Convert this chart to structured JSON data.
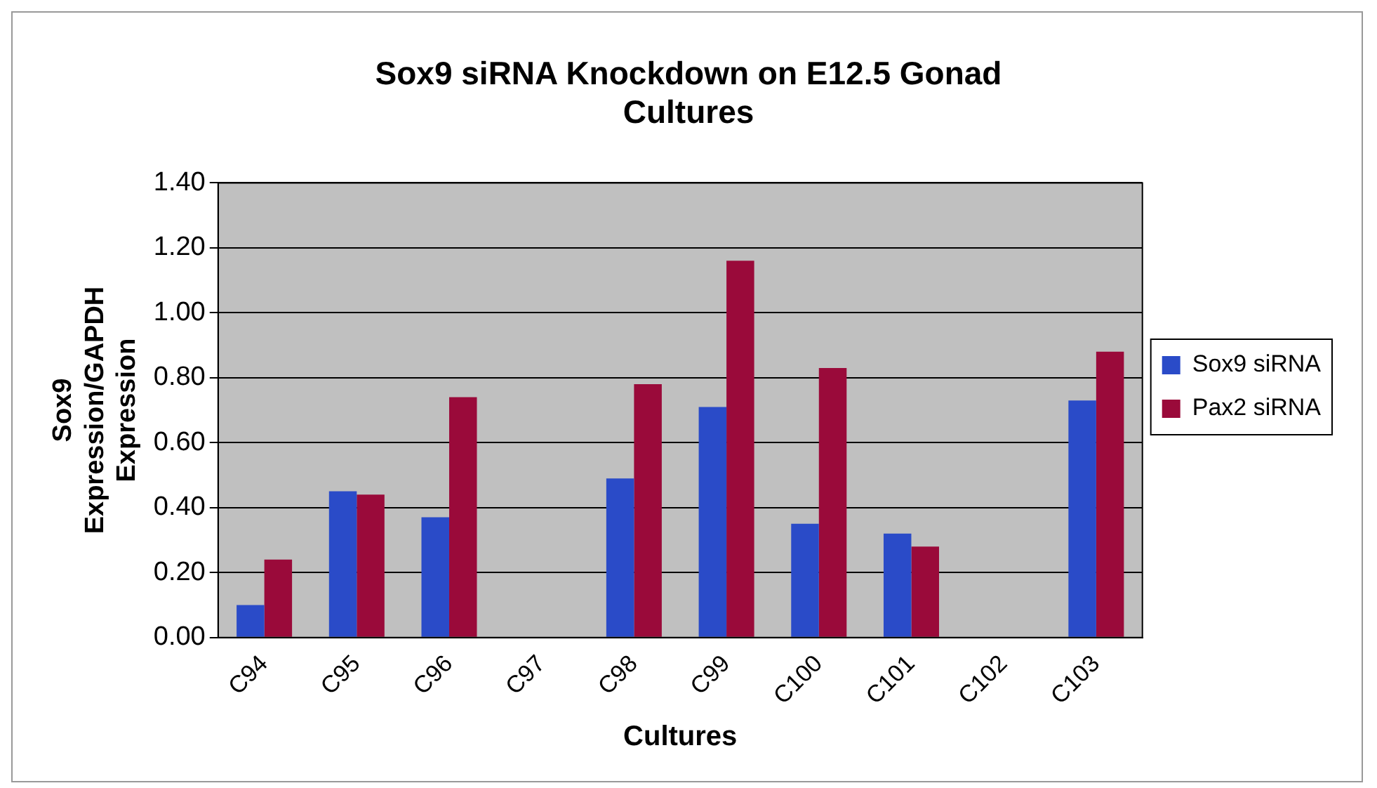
{
  "chart_data": {
    "type": "bar",
    "title": "Sox9 siRNA Knockdown on E12.5 Gonad Cultures",
    "xlabel": "Cultures",
    "ylabel": "Sox9 Expression/GAPDH Expression",
    "categories": [
      "C94",
      "C95",
      "C96",
      "C97",
      "C98",
      "C99",
      "C100",
      "C101",
      "C102",
      "C103"
    ],
    "series": [
      {
        "name": "Sox9 siRNA",
        "color": "#2a4bc8",
        "values": [
          0.1,
          0.45,
          0.37,
          null,
          0.49,
          0.71,
          0.35,
          0.32,
          null,
          0.73
        ]
      },
      {
        "name": "Pax2 siRNA",
        "color": "#9a0a3a",
        "values": [
          0.24,
          0.44,
          0.74,
          null,
          0.78,
          1.16,
          0.83,
          0.28,
          null,
          0.88
        ]
      }
    ],
    "ylim": [
      0,
      1.4
    ],
    "yticks": [
      {
        "value": 0,
        "label": "0.00"
      },
      {
        "value": 0.2,
        "label": "0.20"
      },
      {
        "value": 0.4,
        "label": "0.40"
      },
      {
        "value": 0.6,
        "label": "0.60"
      },
      {
        "value": 0.8,
        "label": "0.80"
      },
      {
        "value": 1.0,
        "label": "1.00"
      },
      {
        "value": 1.2,
        "label": "1.20"
      },
      {
        "value": 1.4,
        "label": "1.40"
      }
    ],
    "grid": "y",
    "legend": "right"
  }
}
